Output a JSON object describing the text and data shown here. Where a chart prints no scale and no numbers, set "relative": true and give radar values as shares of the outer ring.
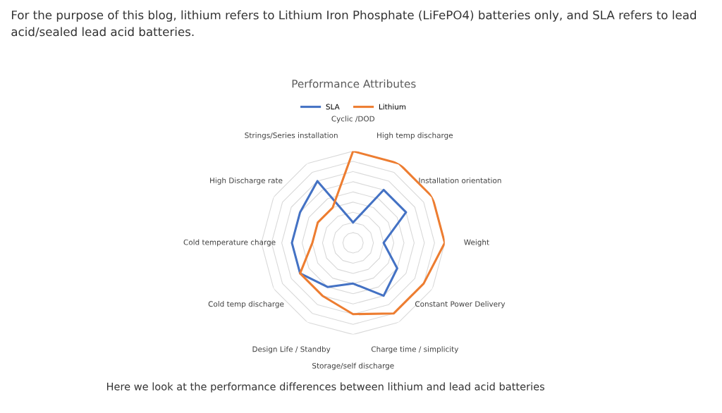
{
  "chart_data": {
    "type": "radar",
    "title": "Performance Attributes",
    "categories": [
      "Cyclic /DOD",
      "High temp discharge",
      "Installation orientation",
      "Weight",
      "Constant Power Delivery",
      "Charge time / simplicity",
      "Storage/self discharge",
      "Design Life / Standby",
      "Cold temp discharge",
      "Cold temperature charge",
      "High Discharge rate",
      "Strings/Series installation"
    ],
    "series": [
      {
        "name": "SLA",
        "color": "#4472c4",
        "values": [
          0.222,
          0.667,
          0.667,
          0.333,
          0.556,
          0.667,
          0.444,
          0.556,
          0.667,
          0.667,
          0.667,
          0.778
        ]
      },
      {
        "name": "Lithium",
        "color": "#ed7d31",
        "values": [
          1,
          1,
          1,
          1,
          0.889,
          0.889,
          0.778,
          0.667,
          0.667,
          0.444,
          0.444,
          0.444
        ]
      }
    ],
    "relative": true,
    "grid": true,
    "legend": "top",
    "annotations": [
      "For the purpose of this blog, lithium refers to Lithium Iron Phosphate (LiFePO4) batteries only, and SLA refers to lead acid/sealed lead acid batteries.",
      "Here we look at the performance differences between lithium and lead acid batteries"
    ]
  }
}
